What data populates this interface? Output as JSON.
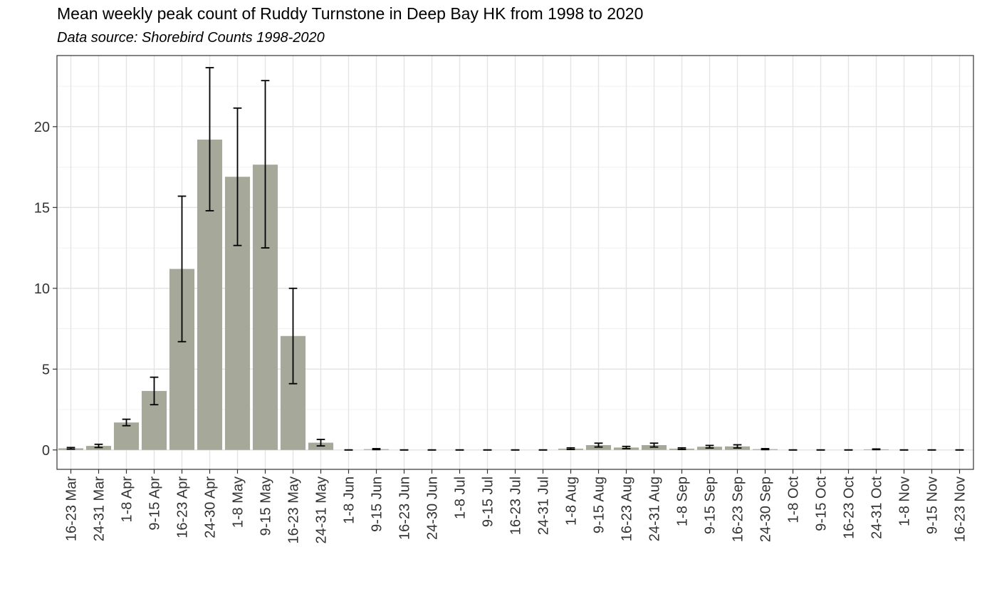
{
  "chart_data": {
    "type": "bar",
    "title": "Mean weekly peak count of Ruddy Turnstone in Deep Bay HK from 1998 to 2020",
    "subtitle": "Data source: Shorebird Counts 1998-2020",
    "xlabel": "",
    "ylabel": "",
    "ylim": [
      -1.2,
      24.4
    ],
    "yticks": [
      0,
      5,
      10,
      15,
      20
    ],
    "grid": true,
    "bar_color": "#a6a899",
    "error_bar_color": "#000000",
    "categories": [
      "16-23 Mar",
      "24-31 Mar",
      "1-8 Apr",
      "9-15 Apr",
      "16-23 Apr",
      "24-30 Apr",
      "1-8 May",
      "9-15 May",
      "16-23 May",
      "24-31 May",
      "1-8 Jun",
      "9-15 Jun",
      "16-23 Jun",
      "24-30 Jun",
      "1-8 Jul",
      "9-15 Jul",
      "16-23 Jul",
      "24-31 Jul",
      "1-8 Aug",
      "9-15 Aug",
      "16-23 Aug",
      "24-31 Aug",
      "1-8 Sep",
      "9-15 Sep",
      "16-23 Sep",
      "24-30 Sep",
      "1-8 Oct",
      "9-15 Oct",
      "16-23 Oct",
      "24-31 Oct",
      "1-8 Nov",
      "9-15 Nov",
      "16-23 Nov"
    ],
    "values": [
      0.1,
      0.25,
      1.7,
      3.65,
      11.2,
      19.2,
      16.9,
      17.65,
      7.05,
      0.45,
      0,
      0.05,
      0,
      0,
      0,
      0,
      0,
      0,
      0.08,
      0.3,
      0.15,
      0.3,
      0.08,
      0.2,
      0.22,
      0.05,
      0,
      0,
      0,
      0.04,
      0,
      0,
      0
    ],
    "error_low": [
      0.05,
      0.15,
      1.5,
      2.8,
      6.7,
      14.8,
      12.65,
      12.5,
      4.1,
      0.25,
      0,
      0.02,
      0,
      0,
      0,
      0,
      0,
      0,
      0.03,
      0.18,
      0.08,
      0.18,
      0.03,
      0.12,
      0.12,
      0.02,
      0,
      0,
      0,
      0.02,
      0,
      0,
      0
    ],
    "error_high": [
      0.15,
      0.35,
      1.9,
      4.5,
      15.7,
      23.65,
      21.15,
      22.85,
      10.0,
      0.65,
      0,
      0.08,
      0,
      0,
      0,
      0,
      0,
      0,
      0.13,
      0.42,
      0.22,
      0.42,
      0.13,
      0.28,
      0.32,
      0.08,
      0,
      0,
      0,
      0.06,
      0,
      0,
      0
    ]
  }
}
